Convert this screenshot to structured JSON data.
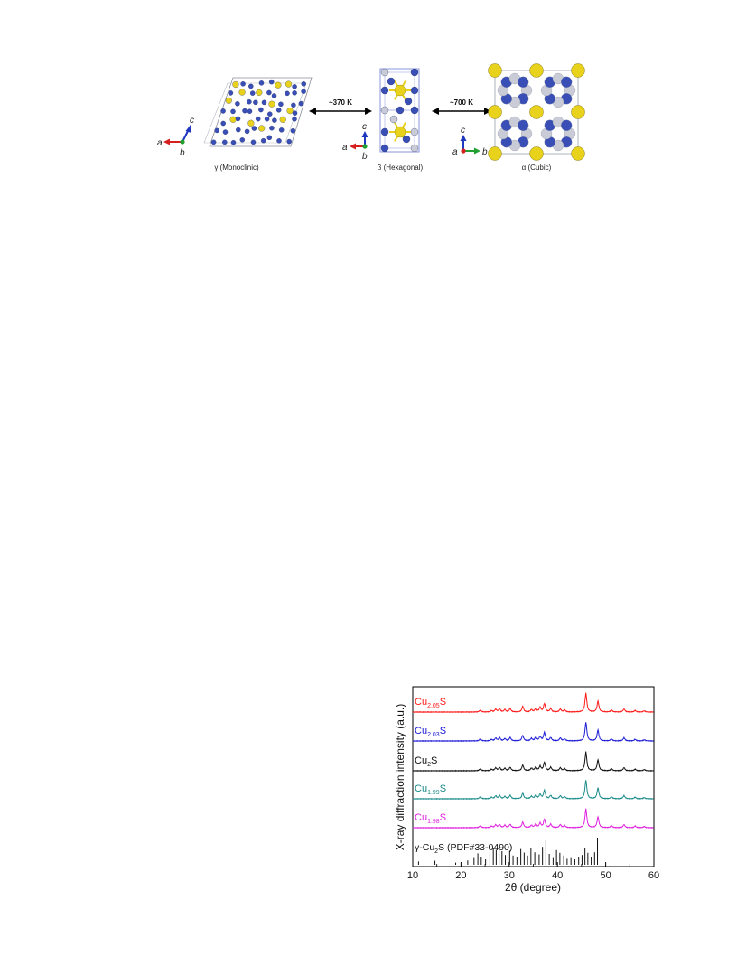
{
  "figure_top": {
    "panels": [
      {
        "phase": "γ (Monoclinic)",
        "axes": {
          "horizontal": "a",
          "vertical": "c",
          "depth": "b"
        }
      },
      {
        "phase": "β (Hexagonal)",
        "axes": {
          "horizontal": "a",
          "vertical": "c",
          "depth": "b"
        }
      },
      {
        "phase": "α (Cubic)",
        "axes": {
          "horizontal": "b",
          "vertical": "c",
          "depth": "a"
        }
      }
    ],
    "transitions": [
      "~370 K",
      "~700 K"
    ],
    "colors": {
      "cu_atom": "#3a4fb5",
      "s_atom": "#e8d21c",
      "vacancy_atom": "#c9ccd6",
      "axis_a": "#d62020",
      "axis_b": "#1fa030",
      "axis_c": "#2038c0"
    }
  },
  "chart_data": {
    "type": "line",
    "xlabel": "2θ (degree)",
    "ylabel": "X-ray diffraction intensity (a.u.)",
    "xlim": [
      10,
      60
    ],
    "xticks": [
      10,
      20,
      30,
      40,
      50,
      60
    ],
    "peaks": [
      24.0,
      26.3,
      27.2,
      28.0,
      29.1,
      30.2,
      32.8,
      34.6,
      35.5,
      36.4,
      37.3,
      38.6,
      40.6,
      41.5,
      45.9,
      48.4,
      51.2,
      53.8,
      56.1,
      58.0
    ],
    "peak_heights": [
      0.1,
      0.07,
      0.14,
      0.16,
      0.12,
      0.17,
      0.28,
      0.12,
      0.18,
      0.22,
      0.42,
      0.17,
      0.15,
      0.1,
      0.95,
      0.55,
      0.1,
      0.16,
      0.08,
      0.06
    ],
    "series": [
      {
        "name": "Cu",
        "subscript": "2.05",
        "suffix": "S",
        "color": "#ff1a1a"
      },
      {
        "name": "Cu",
        "subscript": "2.03",
        "suffix": "S",
        "color": "#1a1ad6"
      },
      {
        "name": "Cu",
        "subscript": "2",
        "suffix": "S",
        "color": "#111111"
      },
      {
        "name": "Cu",
        "subscript": "1.99",
        "suffix": "S",
        "color": "#1a8a8a"
      },
      {
        "name": "Cu",
        "subscript": "1.98",
        "suffix": "S",
        "color": "#e020e0"
      }
    ],
    "reference": {
      "label_prefix": "γ-Cu",
      "label_sub": "2",
      "label_suffix": "S (PDF#33-0490)",
      "lines": [
        [
          11.2,
          0.12
        ],
        [
          14.6,
          0.15
        ],
        [
          18.9,
          0.08
        ],
        [
          21.4,
          0.16
        ],
        [
          22.7,
          0.28
        ],
        [
          23.5,
          0.42
        ],
        [
          24.2,
          0.3
        ],
        [
          25.1,
          0.2
        ],
        [
          26.0,
          0.46
        ],
        [
          26.7,
          0.62
        ],
        [
          27.3,
          0.55
        ],
        [
          27.9,
          0.8
        ],
        [
          28.5,
          0.5
        ],
        [
          29.2,
          0.36
        ],
        [
          30.1,
          0.52
        ],
        [
          30.8,
          0.34
        ],
        [
          31.6,
          0.3
        ],
        [
          32.4,
          0.58
        ],
        [
          33.1,
          0.45
        ],
        [
          33.8,
          0.34
        ],
        [
          34.5,
          0.6
        ],
        [
          35.3,
          0.46
        ],
        [
          36.2,
          0.38
        ],
        [
          36.9,
          0.66
        ],
        [
          37.6,
          0.9
        ],
        [
          38.3,
          0.4
        ],
        [
          39.1,
          0.28
        ],
        [
          39.8,
          0.54
        ],
        [
          40.5,
          0.44
        ],
        [
          41.3,
          0.34
        ],
        [
          42.0,
          0.22
        ],
        [
          42.8,
          0.28
        ],
        [
          43.6,
          0.2
        ],
        [
          44.4,
          0.3
        ],
        [
          45.1,
          0.36
        ],
        [
          45.7,
          0.62
        ],
        [
          46.3,
          0.44
        ],
        [
          47.0,
          0.3
        ],
        [
          47.7,
          0.46
        ],
        [
          48.3,
          1.0
        ]
      ]
    }
  }
}
